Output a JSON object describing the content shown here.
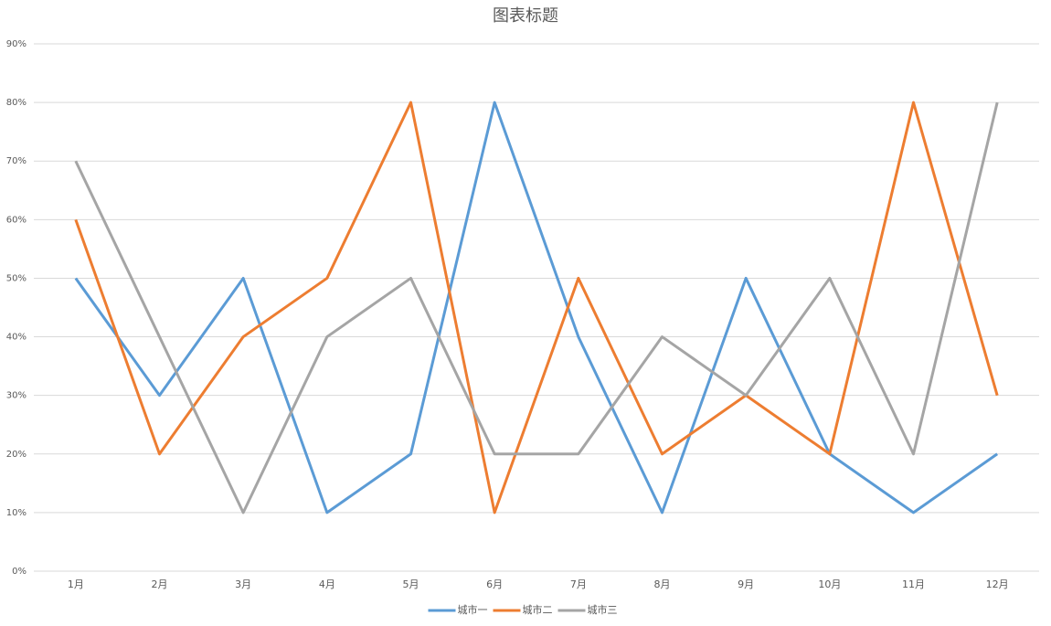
{
  "chart_data": {
    "type": "line",
    "title": "图表标题",
    "categories": [
      "1月",
      "2月",
      "3月",
      "4月",
      "5月",
      "6月",
      "7月",
      "8月",
      "9月",
      "10月",
      "11月",
      "12月"
    ],
    "series": [
      {
        "name": "城市一",
        "color": "#5b9bd5",
        "values": [
          50,
          30,
          50,
          10,
          20,
          80,
          40,
          10,
          50,
          20,
          10,
          20
        ]
      },
      {
        "name": "城市二",
        "color": "#ed7d31",
        "values": [
          60,
          20,
          40,
          50,
          80,
          10,
          50,
          20,
          30,
          20,
          80,
          30
        ]
      },
      {
        "name": "城市三",
        "color": "#a5a5a5",
        "values": [
          70,
          40,
          10,
          40,
          50,
          20,
          20,
          40,
          30,
          50,
          20,
          80
        ]
      }
    ],
    "ylim": [
      0,
      90
    ],
    "yticks": [
      {
        "value": 0,
        "label": "0%"
      },
      {
        "value": 10,
        "label": "10%"
      },
      {
        "value": 20,
        "label": "20%"
      },
      {
        "value": 30,
        "label": "30%"
      },
      {
        "value": 40,
        "label": "40%"
      },
      {
        "value": 50,
        "label": "50%"
      },
      {
        "value": 60,
        "label": "60%"
      },
      {
        "value": 70,
        "label": "70%"
      },
      {
        "value": 80,
        "label": "80%"
      },
      {
        "value": 90,
        "label": "90%"
      }
    ],
    "grid": true,
    "legend": "bottom"
  }
}
